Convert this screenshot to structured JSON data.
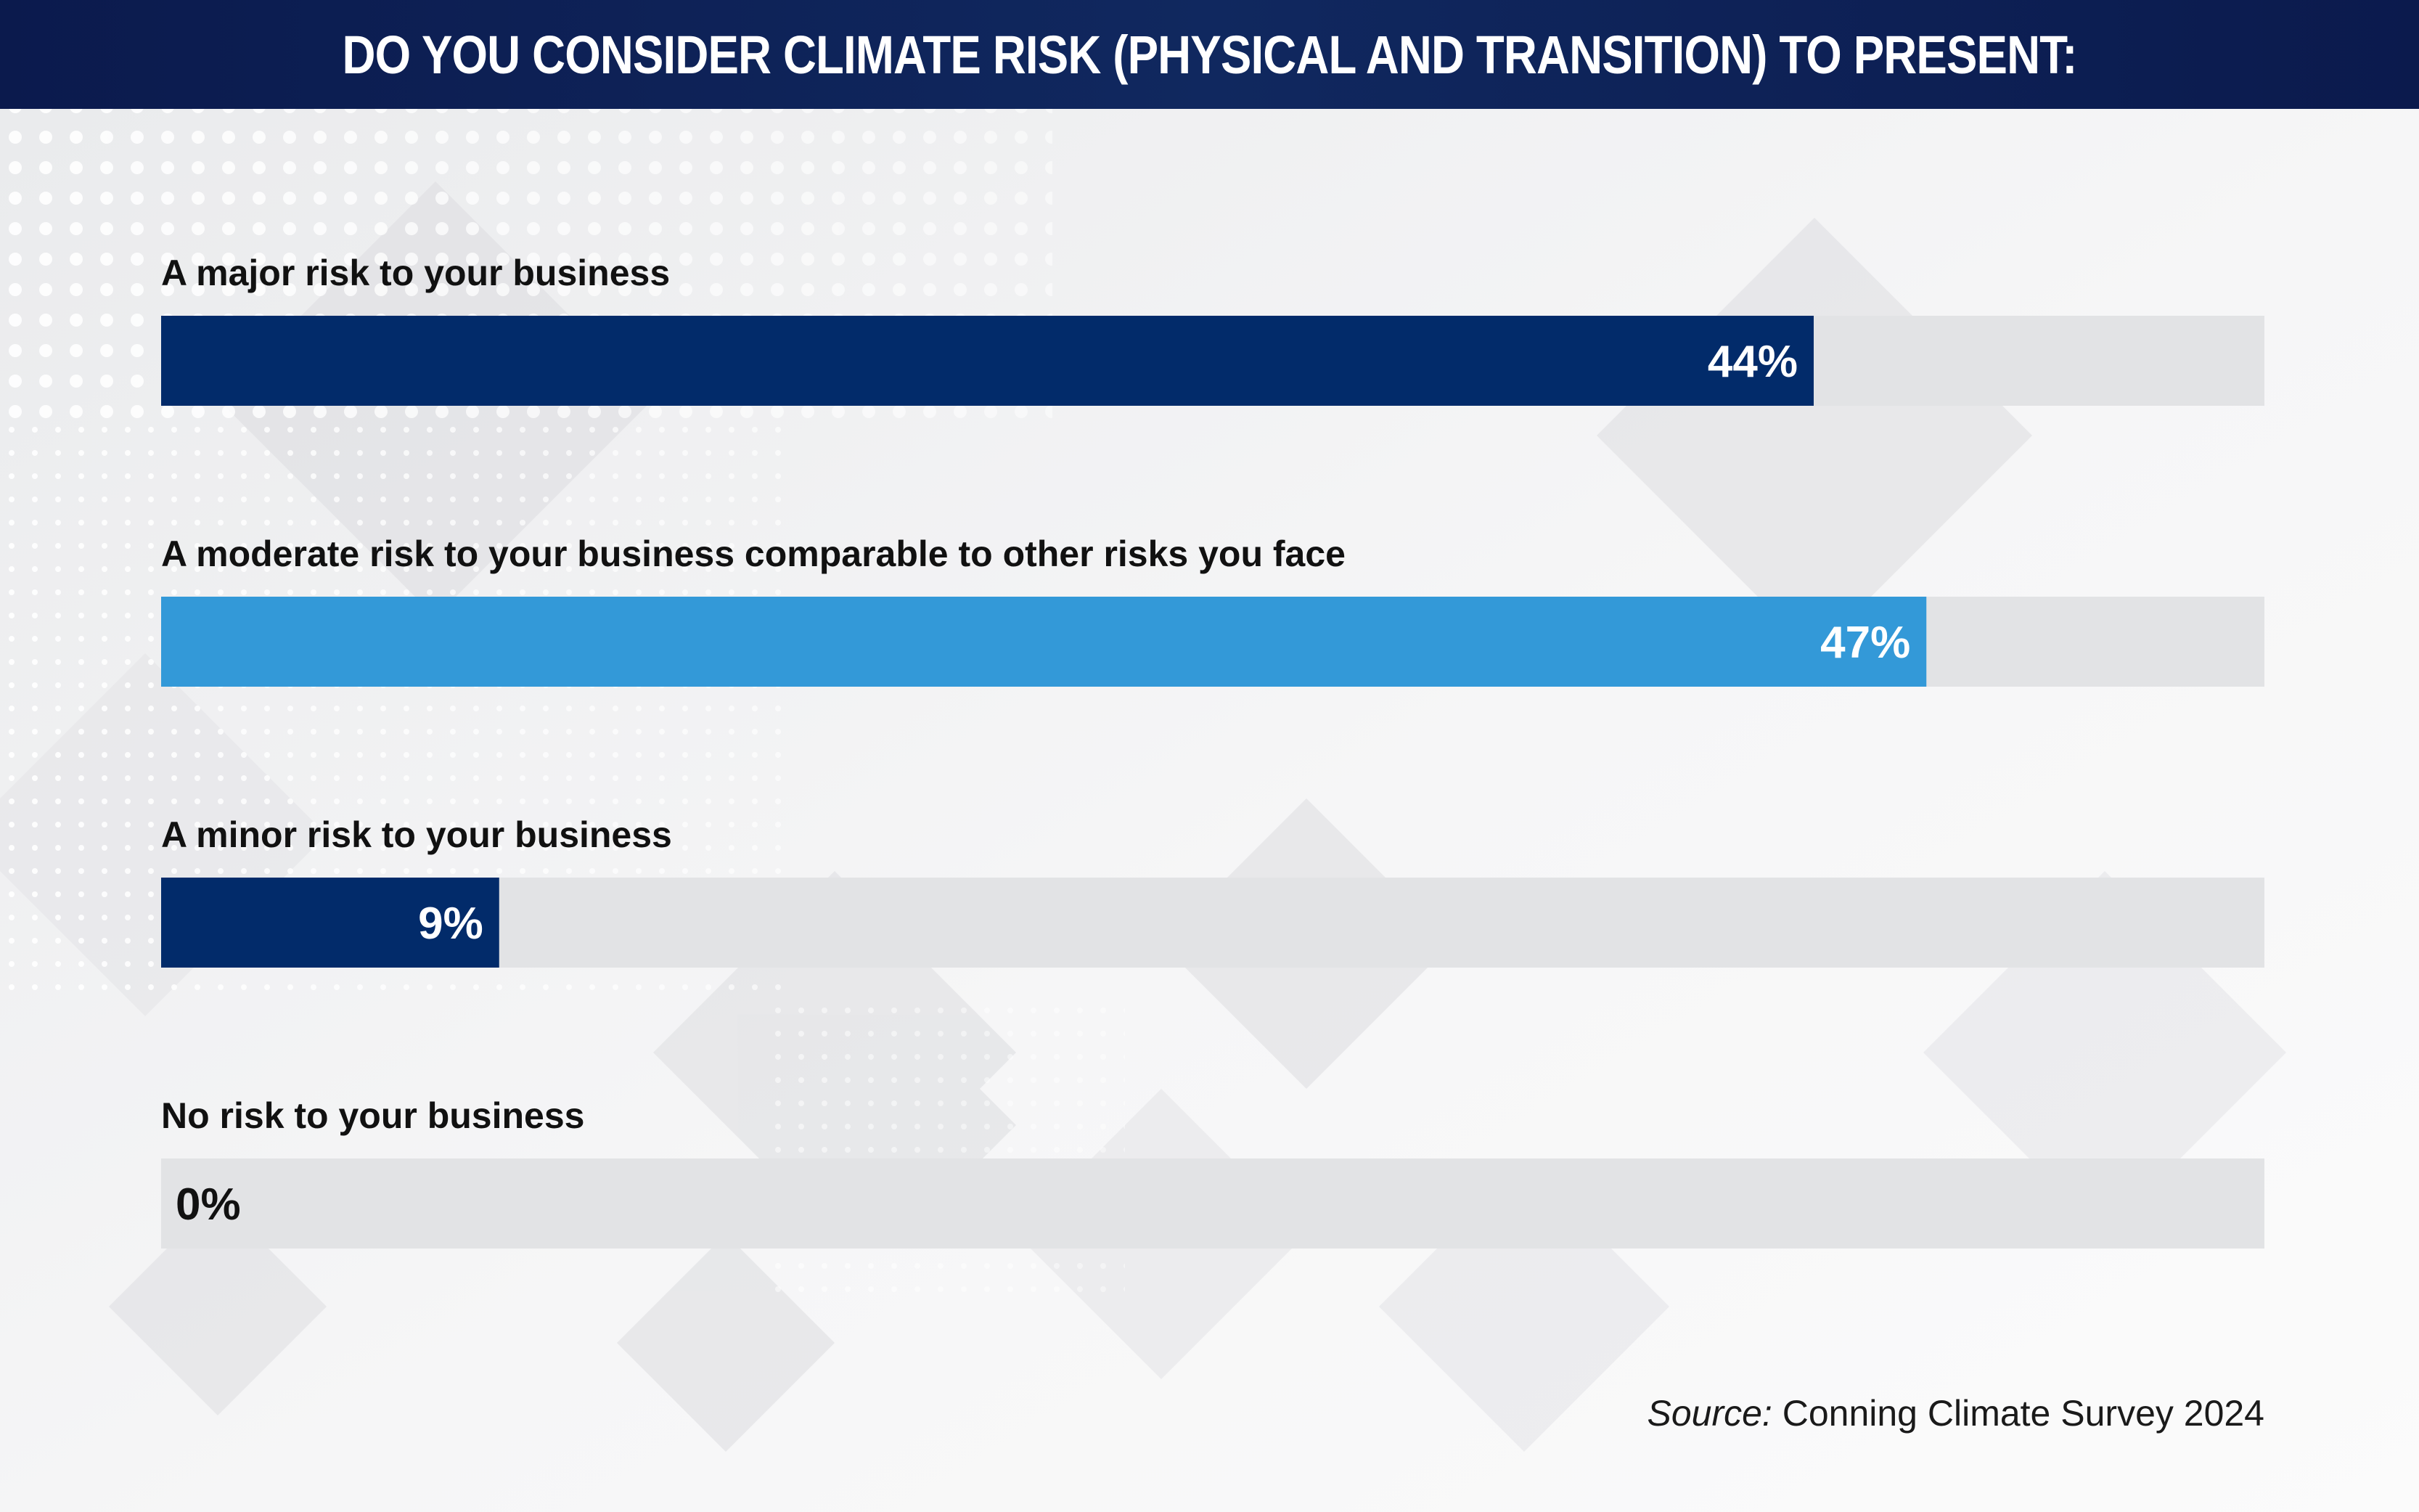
{
  "header": {
    "title": "DO YOU CONSIDER CLIMATE RISK (PHYSICAL AND TRANSITION) TO PRESENT:"
  },
  "source": {
    "lead": "Source:",
    "text": "Conning Climate Survey 2024"
  },
  "colors": {
    "header_bg": "#0e2257",
    "dark_bar": "#022b6a",
    "light_bar": "#3399d8",
    "track": "#e2e3e5"
  },
  "chart_data": {
    "type": "bar",
    "orientation": "horizontal",
    "title": "DO YOU CONSIDER CLIMATE RISK (PHYSICAL AND TRANSITION) TO PRESENT:",
    "xlim": [
      0,
      56
    ],
    "categories": [
      "A major risk to your business",
      "A moderate risk to your business comparable to other risks you face",
      "A minor risk to your business",
      "No risk to your business"
    ],
    "values": [
      44,
      47,
      9,
      0
    ],
    "value_labels": [
      "44%",
      "47%",
      "9%",
      "0%"
    ],
    "bar_colors": [
      "#022b6a",
      "#3399d8",
      "#022b6a",
      "#022b6a"
    ]
  }
}
